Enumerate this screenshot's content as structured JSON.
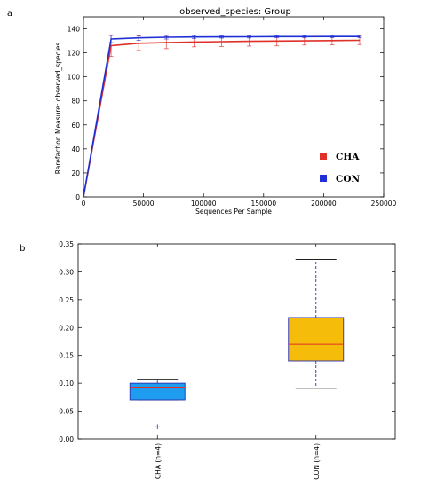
{
  "chart_data": [
    {
      "panel": "a",
      "type": "line",
      "title": "observed_species: Group",
      "xlabel": "Sequences Per Sample",
      "ylabel": "Rarefaction Measure: observed_species",
      "xlim": [
        0,
        250000
      ],
      "ylim": [
        0,
        150
      ],
      "xticks": [
        "0",
        "50000",
        "100000",
        "150000",
        "200000",
        "250000"
      ],
      "yticks": [
        "0",
        "20",
        "40",
        "60",
        "80",
        "100",
        "120",
        "140"
      ],
      "legend_position": "lower-right",
      "series": [
        {
          "name": "CHA",
          "color": "#e0302a",
          "x": [
            0,
            23000,
            46000,
            69000,
            92000,
            115000,
            138000,
            161000,
            184000,
            207000,
            230000
          ],
          "y": [
            0,
            126,
            128,
            128.5,
            129,
            129.3,
            129.6,
            129.8,
            130,
            130.2,
            130.4
          ],
          "err": [
            0,
            9,
            6,
            5,
            4,
            4,
            4,
            4,
            3.5,
            3.5,
            3.5
          ]
        },
        {
          "name": "CON",
          "color": "#1f2fd6",
          "x": [
            0,
            23000,
            46000,
            69000,
            92000,
            115000,
            138000,
            161000,
            184000,
            207000,
            230000
          ],
          "y": [
            0,
            131.5,
            132.5,
            133,
            133.2,
            133.3,
            133.4,
            133.5,
            133.5,
            133.6,
            133.6
          ],
          "err": [
            0,
            3,
            2,
            1.5,
            1.2,
            1,
            1,
            1,
            1,
            1,
            1
          ]
        }
      ]
    },
    {
      "panel": "b",
      "type": "box",
      "ylim": [
        0,
        0.35
      ],
      "yticks": [
        "0.00",
        "0.05",
        "0.10",
        "0.15",
        "0.20",
        "0.25",
        "0.30",
        "0.35"
      ],
      "categories": [
        "CHA (n=4)",
        "CON (n=4)"
      ],
      "boxes": [
        {
          "name": "CHA (n=4)",
          "color": "#1e9cf0",
          "whisker_low": 0.07,
          "q1": 0.07,
          "median": 0.093,
          "q3": 0.1,
          "whisker_high": 0.107,
          "outliers": [
            0.022
          ]
        },
        {
          "name": "CON (n=4)",
          "color": "#f5bc0a",
          "whisker_low": 0.091,
          "q1": 0.14,
          "median": 0.17,
          "q3": 0.218,
          "whisker_high": 0.322,
          "outliers": []
        }
      ]
    }
  ]
}
